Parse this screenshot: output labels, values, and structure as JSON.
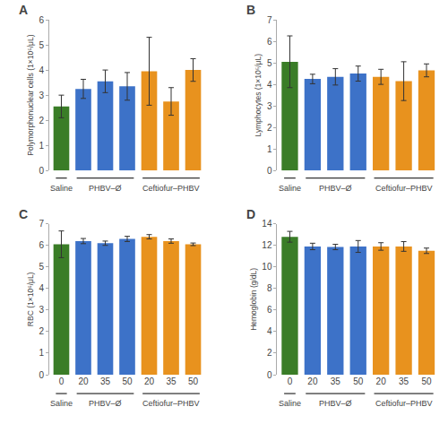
{
  "chart_data": [
    {
      "type": "bar",
      "title": "A",
      "y_label": "Polymorphonuclear cells (1×10⁵/μL)",
      "categories": [
        null,
        null,
        null,
        null,
        null,
        null,
        null
      ],
      "values": [
        2.55,
        3.25,
        3.55,
        3.35,
        3.95,
        2.75,
        4.0
      ],
      "errors": [
        0.45,
        0.38,
        0.45,
        0.55,
        1.35,
        0.55,
        0.45
      ],
      "colors": [
        "#3a7d27",
        "#3d72c8",
        "#3d72c8",
        "#3d72c8",
        "#e8921e",
        "#e8921e",
        "#e8921e"
      ],
      "ylim": [
        0,
        6
      ],
      "yticks": [
        0,
        1,
        2,
        3,
        4,
        5,
        6
      ],
      "grid": false,
      "tick_labels": "y",
      "annotations": [
        {
          "text": "Saline",
          "span": [
            0,
            0
          ]
        },
        {
          "text": "PHBV–Ø",
          "span": [
            1,
            3
          ]
        },
        {
          "text": "Ceftiofur–PHBV",
          "span": [
            4,
            6
          ]
        }
      ]
    },
    {
      "type": "bar",
      "title": "B",
      "y_label": "Lymphocytes (1×10⁵/μL)",
      "categories": [
        null,
        null,
        null,
        null,
        null,
        null,
        null
      ],
      "values": [
        5.05,
        4.25,
        4.35,
        4.5,
        4.35,
        4.15,
        4.65
      ],
      "errors": [
        1.2,
        0.22,
        0.38,
        0.35,
        0.35,
        0.9,
        0.3
      ],
      "colors": [
        "#3a7d27",
        "#3d72c8",
        "#3d72c8",
        "#3d72c8",
        "#e8921e",
        "#e8921e",
        "#e8921e"
      ],
      "ylim": [
        0,
        7
      ],
      "yticks": [
        0,
        1,
        2,
        3,
        4,
        5,
        6,
        7
      ],
      "grid": false,
      "tick_labels": "y",
      "annotations": [
        {
          "text": "Saline",
          "span": [
            0,
            0
          ]
        },
        {
          "text": "PHBV–Ø",
          "span": [
            1,
            3
          ]
        },
        {
          "text": "Ceftiofur–PHBV",
          "span": [
            4,
            6
          ]
        }
      ]
    },
    {
      "type": "bar",
      "title": "C",
      "y_label": "RBC (1×10⁶/μL)",
      "categories": [
        "0",
        "20",
        "35",
        "50",
        "20",
        "35",
        "50"
      ],
      "values": [
        6.05,
        6.2,
        6.1,
        6.3,
        6.4,
        6.2,
        6.05
      ],
      "errors": [
        0.62,
        0.12,
        0.1,
        0.12,
        0.1,
        0.1,
        0.06
      ],
      "colors": [
        "#3a7d27",
        "#3d72c8",
        "#3d72c8",
        "#3d72c8",
        "#e8921e",
        "#e8921e",
        "#e8921e"
      ],
      "ylim": [
        0,
        7
      ],
      "yticks": [
        0,
        1,
        2,
        3,
        4,
        5,
        6,
        7
      ],
      "grid": false,
      "annotations": [
        {
          "text": "Saline",
          "span": [
            0,
            0
          ]
        },
        {
          "text": "PHBV–Ø",
          "span": [
            1,
            3
          ]
        },
        {
          "text": "Ceftiofur–PHBV",
          "span": [
            4,
            6
          ]
        }
      ]
    },
    {
      "type": "bar",
      "title": "D",
      "y_label": "Hemoglobin (g/dL)",
      "categories": [
        "0",
        "20",
        "35",
        "50",
        "20",
        "35",
        "50"
      ],
      "values": [
        12.8,
        11.9,
        11.85,
        11.9,
        11.9,
        11.9,
        11.5
      ],
      "errors": [
        0.5,
        0.3,
        0.25,
        0.55,
        0.35,
        0.45,
        0.25
      ],
      "colors": [
        "#3a7d27",
        "#3d72c8",
        "#3d72c8",
        "#3d72c8",
        "#e8921e",
        "#e8921e",
        "#e8921e"
      ],
      "ylim": [
        0,
        14
      ],
      "yticks": [
        0,
        2,
        4,
        6,
        8,
        10,
        12,
        14
      ],
      "grid": false,
      "annotations": [
        {
          "text": "Saline",
          "span": [
            0,
            0
          ]
        },
        {
          "text": "PHBV–Ø",
          "span": [
            1,
            3
          ]
        },
        {
          "text": "Ceftiofur–PHBV",
          "span": [
            4,
            6
          ]
        }
      ]
    }
  ]
}
